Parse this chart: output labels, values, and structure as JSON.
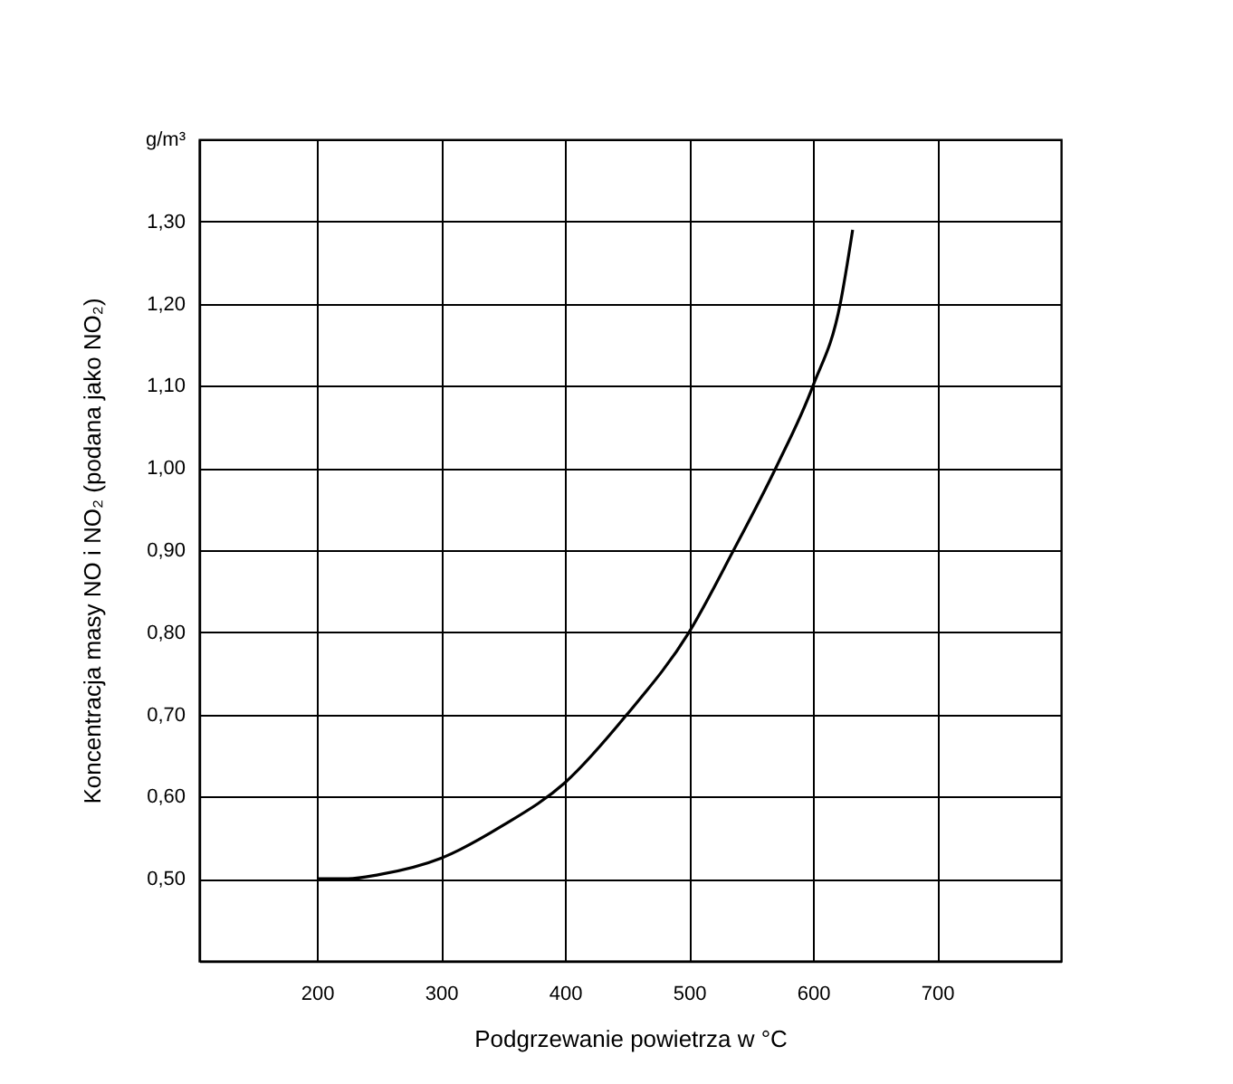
{
  "chart_data": {
    "type": "line",
    "xlabel": "Podgrzewanie powietrza w °C",
    "ylabel": "Koncentracja masy NO i NO₂ (podana jako NO₂)",
    "x": [
      200,
      225,
      250,
      300,
      350,
      400,
      450,
      500,
      536,
      570,
      600,
      622,
      632
    ],
    "series": [
      {
        "color": "#000000",
        "values": [
          0.5,
          0.5,
          0.505,
          0.525,
          0.565,
          0.617,
          0.7,
          0.8,
          0.9,
          1.0,
          1.1,
          1.2,
          1.29
        ]
      }
    ],
    "xlim": [
      105,
      800
    ],
    "xticks": [
      200,
      300,
      400,
      500,
      600,
      700
    ],
    "ylim": [
      0.4,
      1.4
    ],
    "yticks": [
      {
        "value": 0.4,
        "label": null
      },
      {
        "value": 0.5,
        "label": "0,50"
      },
      {
        "value": 0.6,
        "label": "0,60"
      },
      {
        "value": 0.7,
        "label": "0,70"
      },
      {
        "value": 0.8,
        "label": "0,80"
      },
      {
        "value": 0.9,
        "label": "0,90"
      },
      {
        "value": 1.0,
        "label": "1,00"
      },
      {
        "value": 1.1,
        "label": "1,10"
      },
      {
        "value": 1.2,
        "label": "1,20"
      },
      {
        "value": 1.3,
        "label": "1,30"
      },
      {
        "value": 1.4,
        "label": "g/m³"
      }
    ],
    "grid": true
  }
}
